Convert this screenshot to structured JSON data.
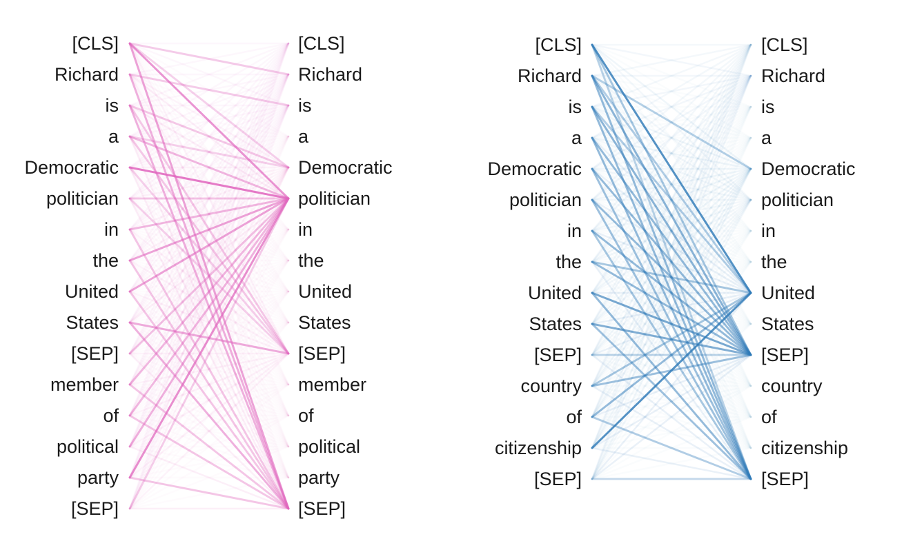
{
  "colors": {
    "pink": "#e066be",
    "blue": "#2f7ab8",
    "text": "#1a1a1a"
  },
  "panels": [
    {
      "name": "attention-panel-1",
      "color": "pink",
      "tokens": [
        "[CLS]",
        "Richard",
        "is",
        "a",
        "Democratic",
        "politician",
        "in",
        "the",
        "United",
        "States",
        "[SEP]",
        "member",
        "of",
        "political",
        "party",
        "[SEP]"
      ],
      "strong": [
        [
          0,
          5,
          0.65
        ],
        [
          0,
          15,
          0.55
        ],
        [
          0,
          1,
          0.3
        ],
        [
          1,
          15,
          0.45
        ],
        [
          1,
          2,
          0.3
        ],
        [
          2,
          15,
          0.45
        ],
        [
          2,
          10,
          0.3
        ],
        [
          3,
          5,
          0.4
        ],
        [
          3,
          10,
          0.3
        ],
        [
          4,
          5,
          0.85
        ],
        [
          5,
          5,
          0.3
        ],
        [
          6,
          5,
          0.4
        ],
        [
          6,
          15,
          0.3
        ],
        [
          7,
          5,
          0.55
        ],
        [
          7,
          15,
          0.3
        ],
        [
          8,
          5,
          0.55
        ],
        [
          9,
          10,
          0.5
        ],
        [
          9,
          15,
          0.45
        ],
        [
          10,
          5,
          0.35
        ],
        [
          11,
          5,
          0.4
        ],
        [
          11,
          15,
          0.3
        ],
        [
          12,
          5,
          0.4
        ],
        [
          13,
          5,
          0.45
        ],
        [
          14,
          5,
          0.7
        ],
        [
          14,
          15,
          0.3
        ],
        [
          15,
          5,
          0.25
        ],
        [
          4,
          10,
          0.25
        ],
        [
          5,
          10,
          0.25
        ],
        [
          2,
          4,
          0.3
        ],
        [
          8,
          15,
          0.3
        ],
        [
          12,
          15,
          0.3
        ],
        [
          3,
          4,
          0.25
        ],
        [
          0,
          4,
          0.25
        ]
      ],
      "fanTargets": [
        [
          5,
          0.1
        ],
        [
          15,
          0.1
        ],
        [
          10,
          0.08
        ],
        [
          4,
          0.07
        ],
        [
          0,
          0.05
        ],
        [
          1,
          0.05
        ],
        [
          2,
          0.05
        ]
      ]
    },
    {
      "name": "attention-panel-2",
      "color": "blue",
      "tokens": [
        "[CLS]",
        "Richard",
        "is",
        "a",
        "Democratic",
        "politician",
        "in",
        "the",
        "United",
        "States",
        "[SEP]",
        "country",
        "of",
        "citizenship",
        "[SEP]"
      ],
      "strong": [
        [
          0,
          8,
          0.8
        ],
        [
          0,
          10,
          0.35
        ],
        [
          1,
          10,
          0.5
        ],
        [
          1,
          14,
          0.45
        ],
        [
          1,
          4,
          0.3
        ],
        [
          2,
          10,
          0.5
        ],
        [
          2,
          14,
          0.45
        ],
        [
          3,
          10,
          0.45
        ],
        [
          3,
          14,
          0.45
        ],
        [
          4,
          10,
          0.45
        ],
        [
          4,
          14,
          0.4
        ],
        [
          5,
          10,
          0.45
        ],
        [
          5,
          14,
          0.4
        ],
        [
          6,
          10,
          0.45
        ],
        [
          6,
          14,
          0.35
        ],
        [
          7,
          10,
          0.45
        ],
        [
          7,
          8,
          0.35
        ],
        [
          8,
          10,
          0.6
        ],
        [
          8,
          14,
          0.45
        ],
        [
          9,
          10,
          0.55
        ],
        [
          9,
          14,
          0.4
        ],
        [
          10,
          10,
          0.25
        ],
        [
          11,
          10,
          0.4
        ],
        [
          11,
          8,
          0.35
        ],
        [
          12,
          8,
          0.45
        ],
        [
          12,
          14,
          0.3
        ],
        [
          13,
          8,
          0.8
        ],
        [
          14,
          14,
          0.2
        ],
        [
          0,
          14,
          0.25
        ],
        [
          1,
          8,
          0.3
        ],
        [
          2,
          8,
          0.3
        ]
      ],
      "fanTargets": [
        [
          8,
          0.1
        ],
        [
          10,
          0.1
        ],
        [
          14,
          0.1
        ],
        [
          4,
          0.07
        ],
        [
          1,
          0.06
        ],
        [
          0,
          0.05
        ],
        [
          5,
          0.05
        ]
      ]
    }
  ]
}
